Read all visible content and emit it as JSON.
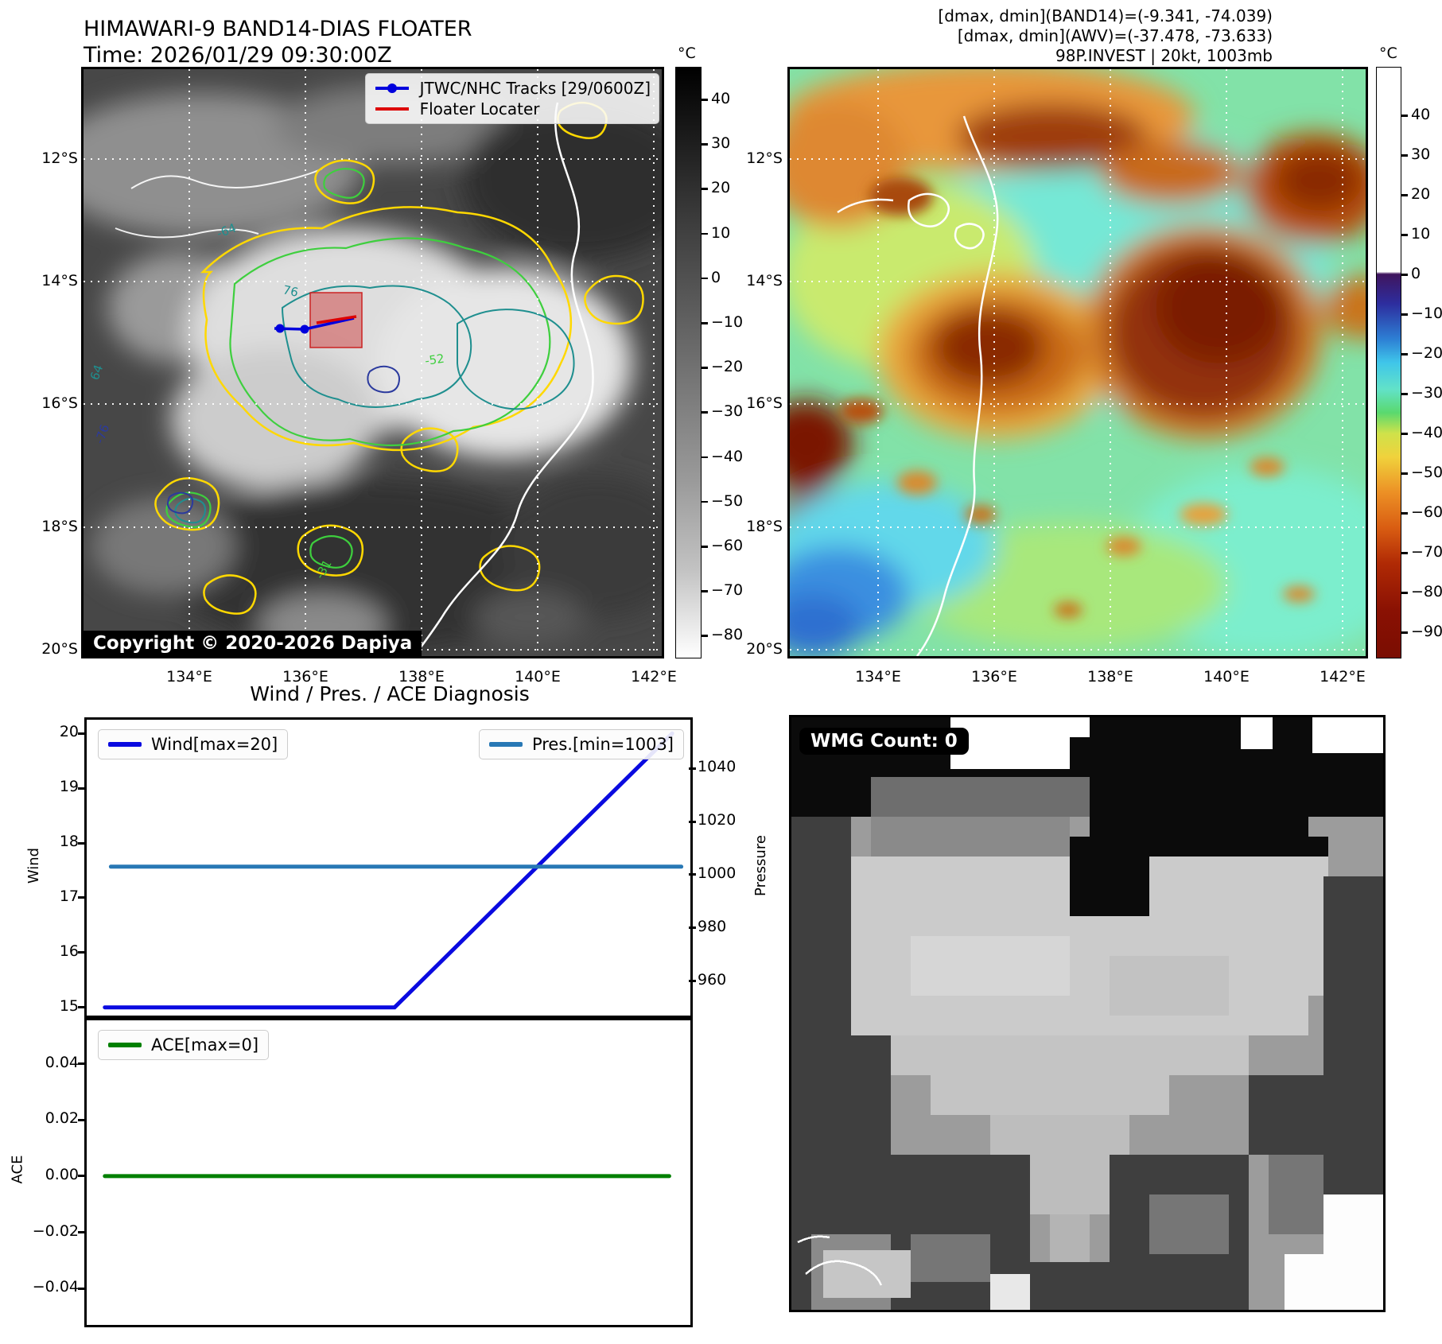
{
  "header": {
    "title": "HIMAWARI-9 BAND14-DIAS FLOATER",
    "time_line": "Time: 2026/01/29 09:30:00Z",
    "stats_line1": "[dmax, dmin](BAND14)=(-9.341, -74.039)",
    "stats_line2": "[dmax, dmin](AWV)=(-37.478, -73.633)",
    "stats_line3": "98P.INVEST | 20kt, 1003mb"
  },
  "band14_map": {
    "legend": {
      "track_label": "JTWC/NHC Tracks [29/0600Z]",
      "floater_label": "Floater Locater"
    },
    "copyright": "Copyright © 2020-2026 Dapiya",
    "lat_labels": [
      "12°S",
      "14°S",
      "16°S",
      "18°S",
      "20°S"
    ],
    "lon_labels": [
      "134°E",
      "136°E",
      "138°E",
      "140°E",
      "142°E"
    ],
    "colorbar": {
      "unit": "°C",
      "ticks": [
        "40",
        "30",
        "20",
        "10",
        "0",
        "−10",
        "−20",
        "−30",
        "−40",
        "−50",
        "−60",
        "−70",
        "−80"
      ]
    },
    "contour_labels": [
      "-64",
      "76",
      "-52",
      "-76",
      "64",
      "-31"
    ]
  },
  "awv_map": {
    "lat_labels": [
      "12°S",
      "14°S",
      "16°S",
      "18°S",
      "20°S"
    ],
    "lon_labels": [
      "134°E",
      "136°E",
      "138°E",
      "140°E",
      "142°E"
    ],
    "colorbar": {
      "unit": "°C",
      "ticks": [
        "40",
        "30",
        "20",
        "10",
        "0",
        "−10",
        "−20",
        "−30",
        "−40",
        "−50",
        "−60",
        "−70",
        "−80",
        "−90"
      ]
    }
  },
  "wmg_panel": {
    "count_label": "WMG Count: 0"
  },
  "colors": {
    "wind_line": "#0a0ae0",
    "pres_line": "#2878b5",
    "ace_line": "#008000",
    "track_line": "#0000dd",
    "floater_line": "#dd0000",
    "contour_yellow": "#ffd800",
    "contour_green": "#3ecf3e",
    "contour_teal": "#1f8f8f"
  },
  "chart_data": [
    {
      "type": "line",
      "title": "Wind / Pres. / ACE Diagnosis",
      "x": {
        "label": "",
        "range": [
          0,
          1
        ],
        "tick_labels_visible": false
      },
      "left_axis": {
        "label": "Wind",
        "ticks": [
          "20",
          "19",
          "18",
          "17",
          "16",
          "15"
        ],
        "range": [
          14.85,
          20.25
        ]
      },
      "right_axis": {
        "label": "Pressure",
        "ticks": [
          "1040",
          "1020",
          "1000",
          "980",
          "960"
        ],
        "range": [
          947,
          1058.3
        ]
      },
      "legend_position": "upper-left and upper-right",
      "series": [
        {
          "name": "Wind[max=20]",
          "color": "#0a0ae0",
          "axis": "left",
          "points": [
            [
              0.03,
              15
            ],
            [
              0.51,
              15
            ],
            [
              0.97,
              20
            ]
          ]
        },
        {
          "name": "Pres.[min=1003]",
          "color": "#2878b5",
          "axis": "right",
          "points": [
            [
              0.04,
              1003
            ],
            [
              0.985,
              1003
            ]
          ]
        }
      ]
    },
    {
      "type": "line",
      "title": "",
      "x": {
        "label": "",
        "range": [
          0,
          1
        ],
        "tick_labels_visible": false
      },
      "left_axis": {
        "label": "ACE",
        "ticks": [
          "0.04",
          "0.02",
          "0.00",
          "−0.02",
          "−0.04"
        ],
        "range": [
          -0.053,
          0.0555
        ]
      },
      "legend_position": "upper-left",
      "series": [
        {
          "name": "ACE[max=0]",
          "color": "#008000",
          "axis": "left",
          "points": [
            [
              0.03,
              0
            ],
            [
              0.965,
              0
            ]
          ]
        }
      ]
    }
  ]
}
